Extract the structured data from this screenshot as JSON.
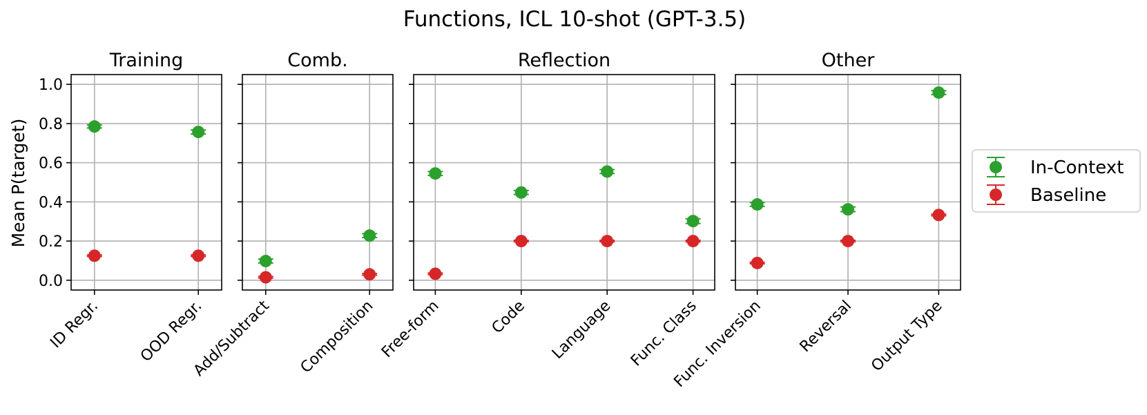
{
  "figure_title": "Functions, ICL 10-shot (GPT-3.5)",
  "chart_data": {
    "type": "scatter",
    "title": "Functions, ICL 10-shot (GPT-3.5)",
    "ylabel": "Mean P(target)",
    "ylim": [
      -0.05,
      1.05
    ],
    "yticks": [
      "0.0",
      "0.2",
      "0.4",
      "0.6",
      "0.8",
      "1.0"
    ],
    "ytick_values": [
      0.0,
      0.2,
      0.4,
      0.6,
      0.8,
      1.0
    ],
    "grid": true,
    "legend_position": "right",
    "colors": {
      "In-Context": "#2ca02c",
      "Baseline": "#d62728"
    },
    "series_names": [
      "In-Context",
      "Baseline"
    ],
    "panels": [
      {
        "title": "Training",
        "categories": [
          "ID Regr.",
          "OOD Regr."
        ],
        "series": [
          {
            "name": "In-Context",
            "values": [
              0.785,
              0.757
            ],
            "errors": [
              0.008,
              0.01
            ]
          },
          {
            "name": "Baseline",
            "values": [
              0.125,
              0.125
            ],
            "errors": [
              0.004,
              0.004
            ]
          }
        ]
      },
      {
        "title": "Comb.",
        "categories": [
          "Add/Subtract",
          "Composition"
        ],
        "series": [
          {
            "name": "In-Context",
            "values": [
              0.098,
              0.228
            ],
            "errors": [
              0.01,
              0.01
            ]
          },
          {
            "name": "Baseline",
            "values": [
              0.015,
              0.03
            ],
            "errors": [
              0.004,
              0.004
            ]
          }
        ]
      },
      {
        "title": "Reflection",
        "categories": [
          "Free-form",
          "Code",
          "Language",
          "Func. Class"
        ],
        "series": [
          {
            "name": "In-Context",
            "values": [
              0.545,
              0.448,
              0.555,
              0.302
            ],
            "errors": [
              0.01,
              0.01,
              0.01,
              0.012
            ]
          },
          {
            "name": "Baseline",
            "values": [
              0.033,
              0.2,
              0.2,
              0.2
            ],
            "errors": [
              0.004,
              0.004,
              0.004,
              0.004
            ]
          }
        ]
      },
      {
        "title": "Other",
        "categories": [
          "Func. Inversion",
          "Reversal",
          "Output Type"
        ],
        "series": [
          {
            "name": "In-Context",
            "values": [
              0.387,
              0.362,
              0.958
            ],
            "errors": [
              0.01,
              0.012,
              0.01
            ]
          },
          {
            "name": "Baseline",
            "values": [
              0.088,
              0.2,
              0.333
            ],
            "errors": [
              0.004,
              0.004,
              0.004
            ]
          }
        ]
      }
    ]
  }
}
